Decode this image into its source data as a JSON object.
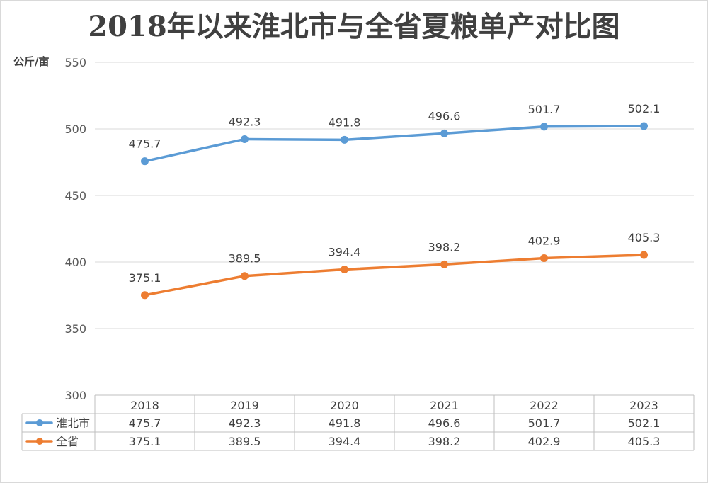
{
  "chart_data": {
    "type": "line",
    "title": "2018年以来淮北市与全省夏粮单产对比图",
    "ylabel": "公斤/亩",
    "xlabel": "",
    "categories": [
      "2018",
      "2019",
      "2020",
      "2021",
      "2022",
      "2023"
    ],
    "ylim": [
      300,
      550
    ],
    "yticks": [
      300,
      350,
      400,
      450,
      500,
      550
    ],
    "grid": true,
    "legend": "data-table",
    "series": [
      {
        "name": "淮北市",
        "color": "#5b9bd5",
        "values": [
          475.7,
          492.3,
          491.8,
          496.6,
          501.7,
          502.1
        ],
        "labels": [
          "475.7",
          "492.3",
          "491.8",
          "496.6",
          "501.7",
          "502.1"
        ]
      },
      {
        "name": "全省",
        "color": "#ed7d31",
        "values": [
          375.1,
          389.5,
          394.4,
          398.2,
          402.9,
          405.3
        ],
        "labels": [
          "375.1",
          "389.5",
          "394.4",
          "398.2",
          "402.9",
          "405.3"
        ]
      }
    ]
  }
}
